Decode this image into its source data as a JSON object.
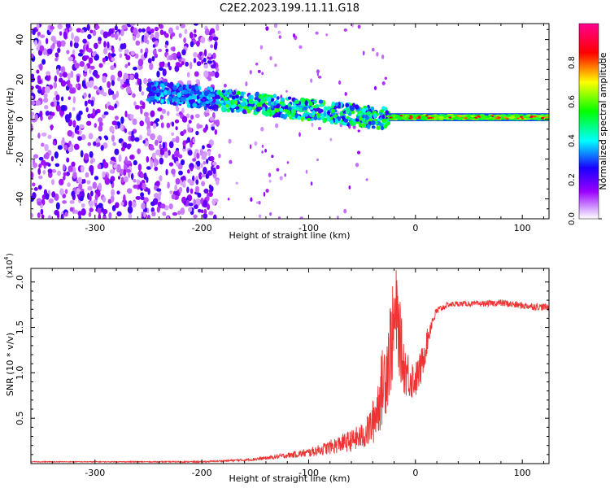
{
  "title": "C2E2.2023.199.11.11.G18",
  "chart_data": [
    {
      "type": "heatmap",
      "title": "C2E2.2023.199.11.11.G18",
      "xlabel": "Height of straight line (km)",
      "ylabel": "Frequency (Hz)",
      "xlim": [
        -360,
        125
      ],
      "ylim": [
        -50,
        48
      ],
      "xticks": [
        -300,
        -200,
        -100,
        0,
        100
      ],
      "xtick_labels": [
        "-300",
        "-200",
        "-100",
        "0",
        "100"
      ],
      "yticks": [
        40,
        20,
        0,
        -20,
        -40
      ],
      "ytick_labels": [
        "40",
        "20",
        "0",
        "-20",
        "-40"
      ],
      "regions": [
        {
          "name": "noise",
          "x_range": [
            -360,
            -185
          ],
          "freq_range": [
            -50,
            48
          ],
          "amplitude": [
            0.05,
            0.25
          ]
        },
        {
          "name": "sparse noise",
          "x_range": [
            -185,
            -25
          ],
          "freq_range": [
            -50,
            48
          ],
          "amplitude": [
            0.05,
            0.15
          ]
        },
        {
          "name": "signal band",
          "x_range": [
            -250,
            -25
          ],
          "freq_center": [
            14,
            0
          ],
          "freq_width": 10,
          "amplitude": [
            0.2,
            0.6
          ]
        },
        {
          "name": "direct signal",
          "x_range": [
            -25,
            125
          ],
          "freq_center": [
            1,
            1
          ],
          "freq_width": 4,
          "amplitude": [
            0.5,
            0.9
          ]
        }
      ],
      "colorbar": {
        "label": "Normalized spectral amplitude",
        "range": [
          0,
          1
        ],
        "ticks": [
          0.0,
          0.2,
          0.4,
          0.6,
          0.8
        ],
        "tick_labels": [
          "0.0",
          "0.2",
          "0.4",
          "0.6",
          "0.8"
        ],
        "colors": [
          "#ffffff",
          "#9a00ff",
          "#1a00ff",
          "#00ffff",
          "#00ff00",
          "#ffff00",
          "#ff0000",
          "#ff0090"
        ]
      }
    },
    {
      "type": "line",
      "xlabel": "Height of straight line (km)",
      "ylabel": "SNR (10 * v/v)",
      "yscale_label": "(x10",
      "yscale_exp": "4",
      "xlim": [
        -360,
        125
      ],
      "ylim": [
        0,
        2.15
      ],
      "xticks": [
        -300,
        -200,
        -100,
        0,
        100
      ],
      "xtick_labels": [
        "-300",
        "-200",
        "-100",
        "0",
        "100"
      ],
      "yticks": [
        0.5,
        1.0,
        1.5,
        2.0
      ],
      "ytick_labels": [
        "0.5",
        "1.0",
        "1.5",
        "2.0"
      ],
      "color": "#ee3333",
      "series": [
        {
          "name": "SNR",
          "x": [
            -360,
            -300,
            -250,
            -200,
            -180,
            -160,
            -140,
            -120,
            -100,
            -90,
            -80,
            -70,
            -60,
            -50,
            -45,
            -40,
            -35,
            -30,
            -25,
            -20,
            -18,
            -15,
            -12,
            -10,
            -5,
            0,
            5,
            10,
            15,
            20,
            30,
            40,
            60,
            80,
            100,
            125
          ],
          "y": [
            0.02,
            0.02,
            0.02,
            0.02,
            0.03,
            0.04,
            0.06,
            0.09,
            0.12,
            0.15,
            0.18,
            0.22,
            0.25,
            0.3,
            0.35,
            0.45,
            0.65,
            0.9,
            1.2,
            1.5,
            1.65,
            1.4,
            1.15,
            1.05,
            0.95,
            0.92,
            1.05,
            1.3,
            1.55,
            1.68,
            1.75,
            1.76,
            1.76,
            1.77,
            1.74,
            1.72
          ],
          "spread": [
            0.005,
            0.005,
            0.006,
            0.008,
            0.01,
            0.015,
            0.02,
            0.03,
            0.05,
            0.06,
            0.08,
            0.1,
            0.12,
            0.15,
            0.18,
            0.25,
            0.35,
            0.45,
            0.55,
            0.55,
            0.5,
            0.45,
            0.35,
            0.3,
            0.25,
            0.2,
            0.2,
            0.15,
            0.08,
            0.05,
            0.03,
            0.03,
            0.03,
            0.04,
            0.04,
            0.04
          ]
        }
      ]
    }
  ]
}
